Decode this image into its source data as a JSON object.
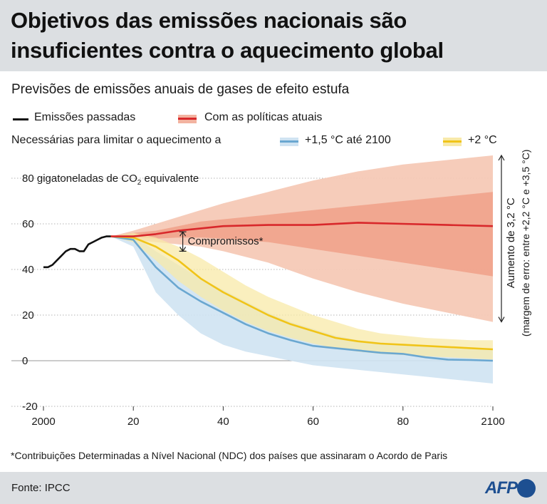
{
  "header": {
    "title": "Objetivos das emissões nacionais são insuficientes contra o aquecimento global"
  },
  "subtitle": "Previsões de emissões anuais de gases de efeito estufa",
  "legend": {
    "past": "Emissões passadas",
    "current": "Com as políticas atuais",
    "needed_prefix": "Necessárias para limitar o aquecimento a",
    "p15": "+1,5 °C até 2100",
    "p2": "+2 °C"
  },
  "colors": {
    "past": "#111111",
    "current_line": "#d8282b",
    "current_band_outer": "#f6c9b6",
    "current_band_inner": "#f0a088",
    "blue_line": "#6aa7d0",
    "blue_band": "#cfe3f2",
    "yellow_line": "#f0c419",
    "yellow_band": "#f8e9a8",
    "header_bg": "#dcdfe2",
    "afp_blue": "#1d4f91"
  },
  "annotations": {
    "unit_label": "80 gigatoneladas de CO",
    "unit_sub": "2",
    "unit_suffix": " equivalente",
    "pledges": "Compromissos*",
    "increase_line1": "Aumento de 3,2 °C",
    "increase_line2": "(margem de erro: entre +2,2 °C e +3,5 °C)"
  },
  "footnote": "*Contribuições Determinadas a Nível Nacional (NDC) dos países que assinaram o Acordo de Paris",
  "footer": {
    "source": "Fonte: IPCC",
    "logo": "AFP"
  },
  "chart_data": {
    "type": "area",
    "xlim": [
      2000,
      2100
    ],
    "ylim": [
      -20,
      90
    ],
    "x_ticks": [
      2000,
      2020,
      2040,
      2060,
      2080,
      2100
    ],
    "x_tick_labels": [
      "2000",
      "20",
      "40",
      "60",
      "80",
      "2100"
    ],
    "y_ticks": [
      -20,
      0,
      20,
      40,
      60,
      80
    ],
    "y_tick_labels": [
      "-20",
      "0",
      "20",
      "40",
      "60",
      ""
    ],
    "series": [
      {
        "name": "Emissões passadas",
        "x": [
          2000,
          2001,
          2002,
          2003,
          2004,
          2005,
          2006,
          2007,
          2008,
          2009,
          2010,
          2011,
          2012,
          2013,
          2014,
          2015
        ],
        "y": [
          41,
          41,
          42,
          44,
          46,
          48,
          49,
          49,
          48,
          48,
          51,
          52,
          53,
          54,
          54.5,
          54.5
        ]
      },
      {
        "name": "Com as políticas atuais",
        "x": [
          2015,
          2020,
          2025,
          2030,
          2035,
          2040,
          2050,
          2060,
          2070,
          2080,
          2090,
          2100
        ],
        "y": [
          54.5,
          54.5,
          55.5,
          57,
          58,
          59,
          59.5,
          59.5,
          60.5,
          60,
          59.5,
          59
        ],
        "band_inner_low": [
          54.5,
          54,
          53.5,
          54,
          54,
          53.5,
          52,
          49,
          46,
          43,
          40,
          37
        ],
        "band_inner_high": [
          54.5,
          56,
          57,
          59,
          61,
          62,
          64,
          66,
          68,
          70,
          72,
          74
        ],
        "band_outer_low": [
          54.5,
          53,
          52,
          51,
          50,
          48,
          43,
          36,
          30,
          25,
          21,
          17
        ],
        "band_outer_high": [
          54.5,
          57,
          60,
          63,
          66,
          69,
          74,
          79,
          83,
          86,
          88,
          90
        ]
      },
      {
        "name": "+1,5 °C até 2100",
        "x": [
          2015,
          2020,
          2025,
          2030,
          2035,
          2040,
          2045,
          2050,
          2055,
          2060,
          2065,
          2070,
          2075,
          2080,
          2085,
          2090,
          2095,
          2100
        ],
        "y": [
          54.5,
          53,
          41,
          32,
          26,
          21,
          16,
          12,
          9,
          6.5,
          5.5,
          4.5,
          3.5,
          3,
          1.5,
          0.5,
          0.3,
          0
        ],
        "band_low": [
          54.5,
          50,
          30,
          20,
          12,
          7,
          4,
          2,
          0,
          -2,
          -3,
          -4,
          -5,
          -6,
          -7,
          -8,
          -9,
          -10
        ],
        "band_high": [
          54.5,
          55,
          48,
          42,
          36,
          31,
          26,
          21,
          17,
          14,
          11,
          9,
          8,
          7,
          6,
          5.5,
          5,
          5
        ]
      },
      {
        "name": "+2 °C",
        "x": [
          2015,
          2020,
          2025,
          2030,
          2035,
          2040,
          2045,
          2050,
          2055,
          2060,
          2065,
          2070,
          2075,
          2080,
          2085,
          2090,
          2095,
          2100
        ],
        "y": [
          54.5,
          54,
          50,
          44,
          36,
          30,
          25,
          20,
          16,
          13,
          10,
          8.5,
          7.5,
          7,
          6.5,
          6,
          5.5,
          5
        ],
        "band_low": [
          54.5,
          52,
          44,
          35,
          28,
          22,
          17,
          13,
          10,
          7.5,
          5.5,
          4,
          3,
          2.5,
          2,
          1.5,
          1,
          0.5
        ],
        "band_high": [
          54.5,
          56,
          54,
          50,
          45,
          39,
          33,
          28,
          24,
          20,
          17,
          14,
          12,
          11,
          10,
          9.5,
          9,
          9
        ]
      }
    ]
  }
}
